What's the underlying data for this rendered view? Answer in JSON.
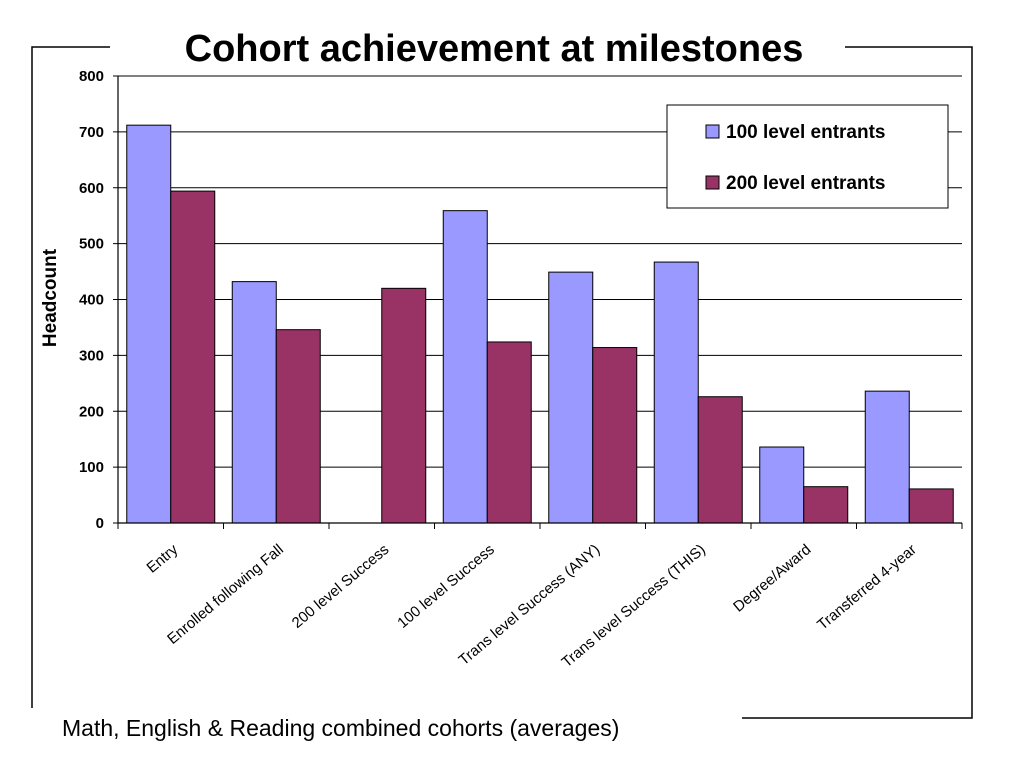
{
  "chart_data": {
    "type": "bar",
    "title": "Cohort achievement at milestones",
    "subtitle": "Math, English & Reading combined cohorts (averages)",
    "xlabel": "",
    "ylabel": "Headcount",
    "ylim": [
      0,
      800
    ],
    "yticks": [
      0,
      100,
      200,
      300,
      400,
      500,
      600,
      700,
      800
    ],
    "grid": true,
    "legend_position": "top-right",
    "categories": [
      "Entry",
      "Enrolled following Fall",
      "200 level Success",
      "100 level Success",
      "Trans level Success (ANY)",
      "Trans level Success (THIS)",
      "Degree/Award",
      "Transferred 4-year"
    ],
    "series": [
      {
        "name": "100 level entrants",
        "color": "#9999FF",
        "values": [
          712,
          432,
          0,
          559,
          449,
          467,
          136,
          236
        ]
      },
      {
        "name": "200 level entrants",
        "color": "#993366",
        "values": [
          594,
          346,
          420,
          324,
          314,
          226,
          65,
          61
        ]
      }
    ]
  }
}
